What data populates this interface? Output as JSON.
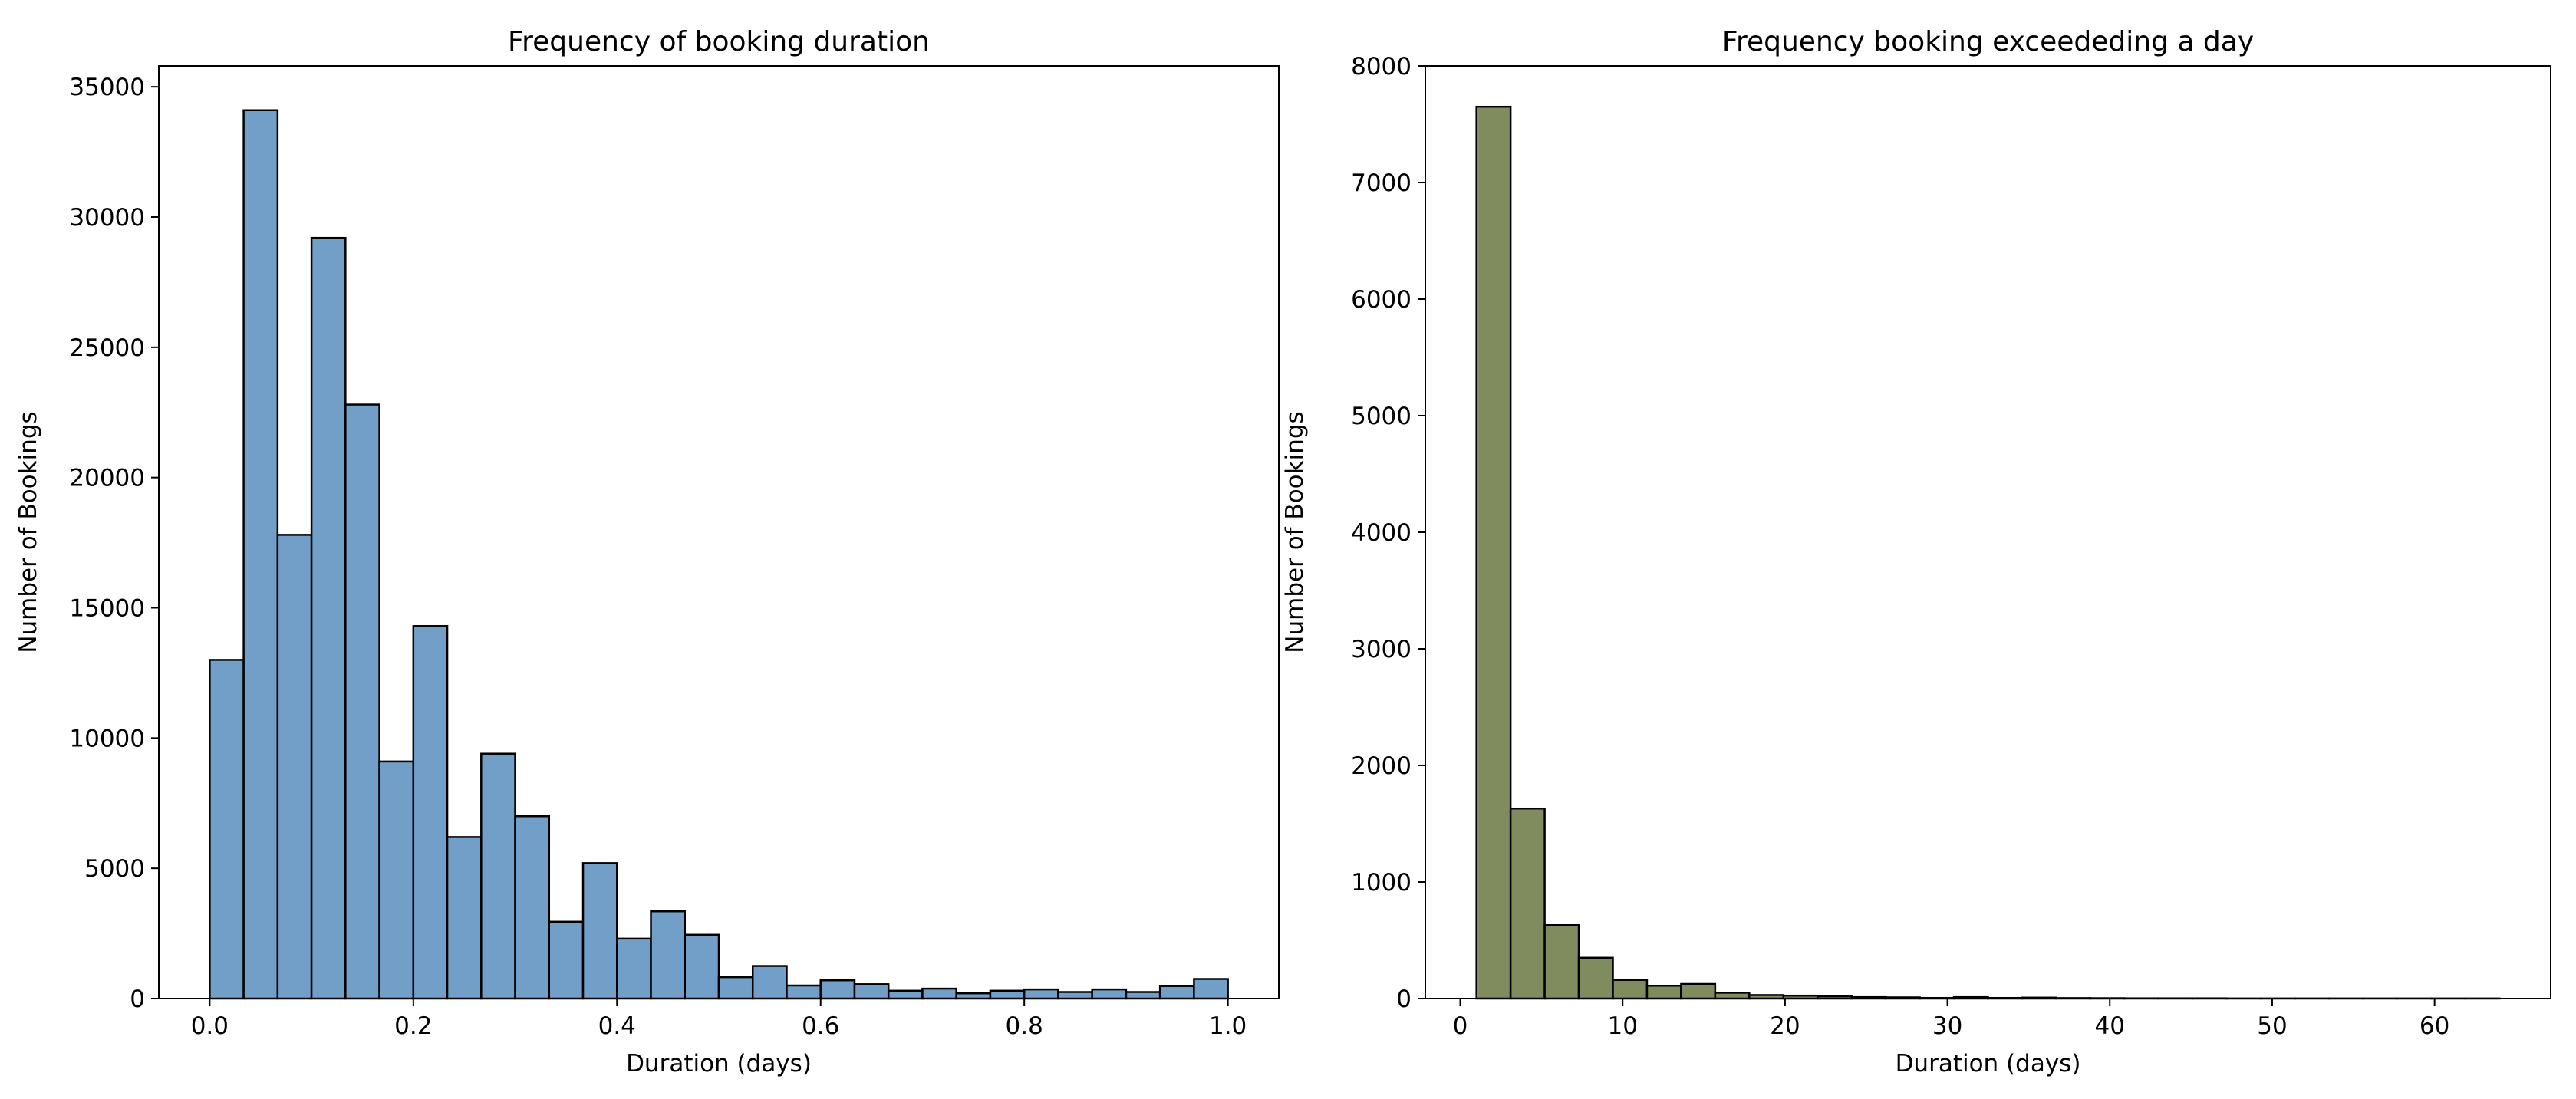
{
  "chart_data": [
    {
      "type": "bar",
      "title": "Frequency of booking duration",
      "xlabel": "Duration (days)",
      "ylabel": "Number of Bookings",
      "xlim": [
        -0.05,
        1.05
      ],
      "ylim": [
        0,
        35800
      ],
      "xticks": [
        0.0,
        0.2,
        0.4,
        0.6,
        0.8,
        1.0
      ],
      "xtick_labels": [
        "0.0",
        "0.2",
        "0.4",
        "0.6",
        "0.8",
        "1.0"
      ],
      "yticks": [
        0,
        5000,
        10000,
        15000,
        20000,
        25000,
        30000,
        35000
      ],
      "ytick_labels": [
        "0",
        "5000",
        "10000",
        "15000",
        "20000",
        "25000",
        "30000",
        "35000"
      ],
      "grid": false,
      "color": "#729fc8",
      "bins": {
        "start": 0.0,
        "end": 1.0,
        "count": 30
      },
      "values": [
        13000,
        34100,
        17800,
        29200,
        22800,
        9100,
        14300,
        6200,
        9400,
        7000,
        2950,
        5200,
        2300,
        3350,
        2450,
        820,
        1250,
        500,
        700,
        550,
        300,
        380,
        200,
        300,
        350,
        250,
        350,
        250,
        480,
        750
      ]
    },
    {
      "type": "bar",
      "title": "Frequency booking exceededing a day",
      "xlabel": "Duration (days)",
      "ylabel": "Number of Bookings",
      "xlim": [
        -2.15,
        67.15
      ],
      "ylim": [
        0,
        8000
      ],
      "xticks": [
        0,
        10,
        20,
        30,
        40,
        50,
        60
      ],
      "xtick_labels": [
        "0",
        "10",
        "20",
        "30",
        "40",
        "50",
        "60"
      ],
      "yticks": [
        0,
        1000,
        2000,
        3000,
        4000,
        5000,
        6000,
        7000,
        8000
      ],
      "ytick_labels": [
        "0",
        "1000",
        "2000",
        "3000",
        "4000",
        "5000",
        "6000",
        "7000",
        "8000"
      ],
      "grid": false,
      "color": "#808b5e",
      "bins": {
        "start": 1.0,
        "end": 64.0,
        "count": 30
      },
      "values": [
        7650,
        1630,
        630,
        350,
        160,
        110,
        125,
        50,
        30,
        25,
        20,
        12,
        10,
        5,
        12,
        5,
        8,
        4,
        3,
        2,
        2,
        2,
        1,
        1,
        1,
        1,
        1,
        1,
        1,
        1
      ]
    }
  ]
}
